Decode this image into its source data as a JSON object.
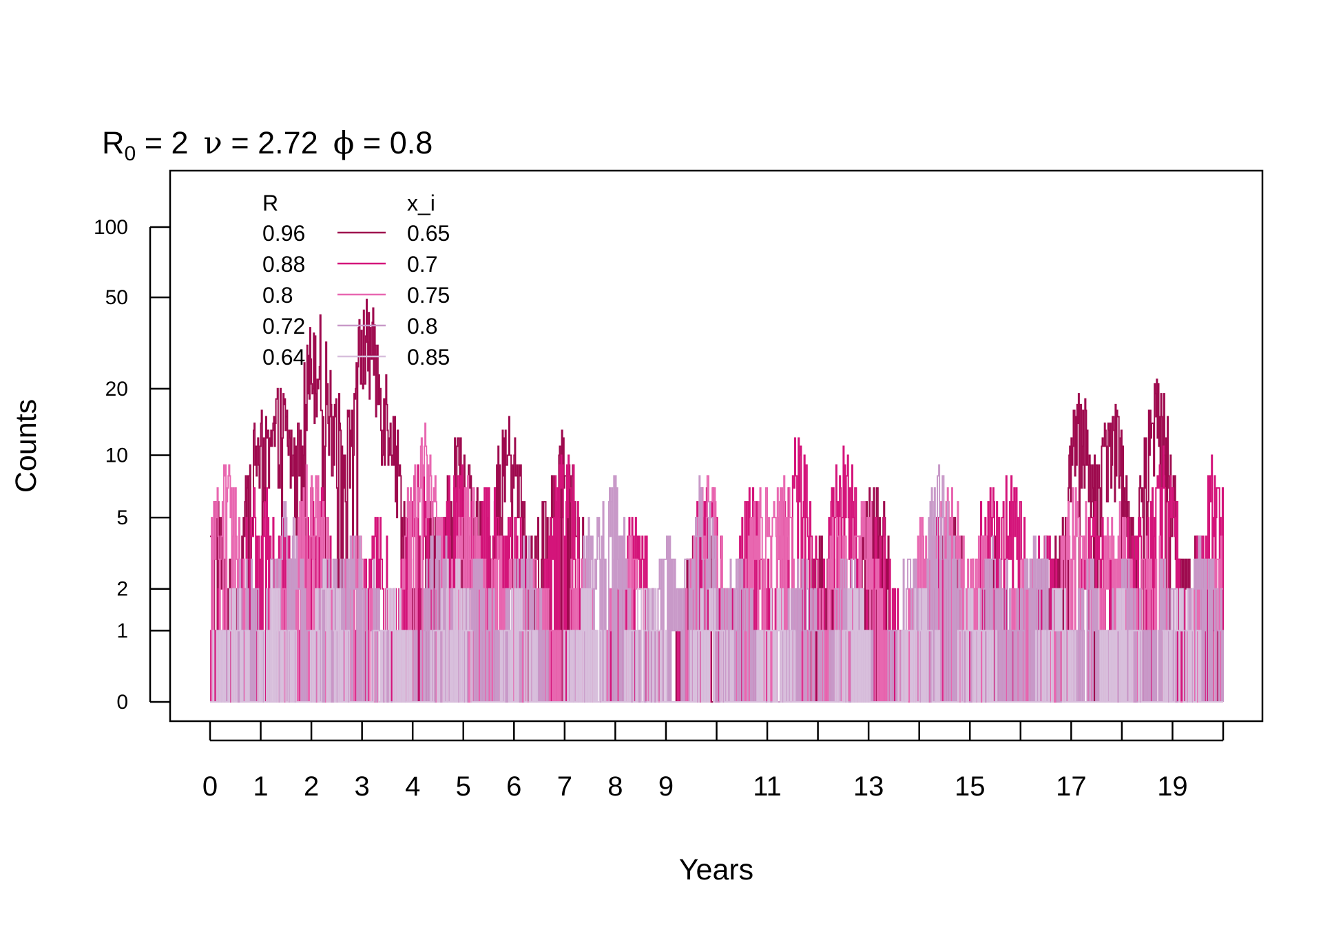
{
  "chart_data": {
    "type": "line",
    "title": {
      "r0_symbol": "R",
      "r0_subscript": "0",
      "r0_value": " = 2",
      "nu_symbol": "ν",
      "nu_value": " = 2.72",
      "phi_symbol": "ϕ",
      "phi_value": " = 0.8"
    },
    "xlabel": "Years",
    "ylabel": "Counts",
    "xlim": [
      -0.8,
      20.8
    ],
    "x_ticks": [
      0,
      1,
      2,
      3,
      4,
      5,
      6,
      7,
      8,
      9,
      10,
      11,
      12,
      13,
      14,
      15,
      16,
      17,
      18,
      19,
      20
    ],
    "x_tick_labels": [
      "0",
      "1",
      "2",
      "3",
      "4",
      "5",
      "6",
      "7",
      "8",
      "9",
      "11",
      "13",
      "15",
      "17",
      "19"
    ],
    "x_tick_label_values": [
      0,
      1,
      2,
      3,
      4,
      5,
      6,
      7,
      8,
      9,
      11,
      13,
      15,
      17,
      19
    ],
    "y_scale": "log(y+1)",
    "y_ticks": [
      0,
      1,
      2,
      5,
      10,
      20,
      50,
      100
    ],
    "y_tick_labels": [
      "0",
      "1",
      "2",
      "5",
      "10",
      "20",
      "50",
      "100"
    ],
    "ylim": [
      0,
      150
    ],
    "legend": {
      "position": "top-left",
      "header_left": "R",
      "header_right": "x_i",
      "entries": [
        {
          "r": "0.96",
          "xi": "0.65",
          "color": "#9E0A4E"
        },
        {
          "r": "0.88",
          "xi": "0.7",
          "color": "#D4147A"
        },
        {
          "r": "0.8",
          "xi": "0.75",
          "color": "#E867B0"
        },
        {
          "r": "0.72",
          "xi": "0.8",
          "color": "#C899C8"
        },
        {
          "r": "0.64",
          "xi": "0.85",
          "color": "#D8BFDC"
        }
      ]
    },
    "series": [
      {
        "r": "0.96",
        "xi": "0.65",
        "color": "#9E0A4E",
        "peaks": [
          [
            0,
            7
          ],
          [
            0.3,
            3
          ],
          [
            1,
            15
          ],
          [
            1.4,
            19
          ],
          [
            1.7,
            13
          ],
          [
            2.1,
            40
          ],
          [
            2.4,
            21
          ],
          [
            2.7,
            15
          ],
          [
            3.1,
            45
          ],
          [
            3.4,
            25
          ],
          [
            3.7,
            7
          ],
          [
            4.3,
            6
          ],
          [
            4.9,
            12
          ],
          [
            5.3,
            6
          ],
          [
            5.9,
            14
          ],
          [
            6.6,
            6
          ],
          [
            7.0,
            12
          ],
          [
            9.7,
            6
          ],
          [
            12.1,
            4
          ],
          [
            13.1,
            7
          ],
          [
            14.6,
            5
          ],
          [
            15.4,
            4
          ],
          [
            16.6,
            4
          ],
          [
            17.2,
            18
          ],
          [
            17.6,
            3
          ],
          [
            17.8,
            17
          ],
          [
            18.7,
            20
          ],
          [
            19.4,
            4
          ],
          [
            20,
            1
          ]
        ]
      },
      {
        "r": "0.88",
        "xi": "0.7",
        "color": "#D4147A",
        "peaks": [
          [
            0.3,
            2
          ],
          [
            1.0,
            8
          ],
          [
            1.4,
            5
          ],
          [
            2.1,
            7
          ],
          [
            3.3,
            5
          ],
          [
            4.1,
            8
          ],
          [
            4.9,
            10
          ],
          [
            5.5,
            7
          ],
          [
            6.0,
            5
          ],
          [
            7.0,
            10
          ],
          [
            8.4,
            5
          ],
          [
            9.8,
            8
          ],
          [
            10.7,
            7
          ],
          [
            11.6,
            11
          ],
          [
            12.5,
            10
          ],
          [
            13.2,
            5
          ],
          [
            14.4,
            5
          ],
          [
            15.4,
            7
          ],
          [
            15.8,
            8
          ],
          [
            16.5,
            4
          ],
          [
            17.5,
            6
          ],
          [
            18.2,
            6
          ],
          [
            18.8,
            10
          ],
          [
            19.8,
            9
          ]
        ]
      },
      {
        "r": "0.8",
        "xi": "0.75",
        "color": "#E867B0",
        "peaks": [
          [
            0.3,
            9
          ],
          [
            1.5,
            4
          ],
          [
            2.0,
            9
          ],
          [
            2.9,
            4
          ],
          [
            4.2,
            13
          ],
          [
            5.1,
            7
          ],
          [
            5.8,
            4
          ],
          [
            6.4,
            3
          ],
          [
            7.3,
            3
          ],
          [
            8.2,
            4
          ],
          [
            9.8,
            8
          ],
          [
            10.9,
            7
          ],
          [
            11.3,
            7
          ],
          [
            12.4,
            5
          ],
          [
            12.9,
            6
          ],
          [
            14.1,
            5
          ],
          [
            14.6,
            7
          ],
          [
            15.2,
            4
          ],
          [
            16.1,
            3
          ],
          [
            17.1,
            7
          ],
          [
            17.9,
            6
          ],
          [
            18.6,
            4
          ],
          [
            19.7,
            4
          ],
          [
            20,
            4
          ]
        ]
      },
      {
        "r": "0.72",
        "xi": "0.8",
        "color": "#C899C8",
        "peaks": [
          [
            0.7,
            3
          ],
          [
            1.5,
            6
          ],
          [
            2.4,
            4
          ],
          [
            3.0,
            5
          ],
          [
            4.5,
            4
          ],
          [
            5.3,
            3
          ],
          [
            6.2,
            4
          ],
          [
            7.6,
            5
          ],
          [
            7.9,
            8
          ],
          [
            9.0,
            4
          ],
          [
            9.7,
            7
          ],
          [
            10.4,
            3
          ],
          [
            11.7,
            3
          ],
          [
            12.6,
            3
          ],
          [
            13.8,
            3
          ],
          [
            14.4,
            8
          ],
          [
            15.5,
            4
          ],
          [
            16.3,
            5
          ],
          [
            17.3,
            3
          ],
          [
            18.1,
            3
          ],
          [
            18.9,
            3
          ],
          [
            19.6,
            4
          ]
        ]
      },
      {
        "r": "0.64",
        "xi": "0.85",
        "color": "#D8BFDC",
        "peaks": [
          [
            0.4,
            2
          ],
          [
            1.3,
            2
          ],
          [
            2.3,
            3
          ],
          [
            3.6,
            2
          ],
          [
            4.8,
            3
          ],
          [
            6.1,
            2
          ],
          [
            7.4,
            2
          ],
          [
            8.6,
            2
          ],
          [
            9.9,
            2
          ],
          [
            11.2,
            2
          ],
          [
            12.7,
            2
          ],
          [
            14.0,
            2
          ],
          [
            15.1,
            2
          ],
          [
            16.7,
            2
          ],
          [
            18.0,
            2
          ],
          [
            19.2,
            2
          ]
        ]
      }
    ]
  }
}
